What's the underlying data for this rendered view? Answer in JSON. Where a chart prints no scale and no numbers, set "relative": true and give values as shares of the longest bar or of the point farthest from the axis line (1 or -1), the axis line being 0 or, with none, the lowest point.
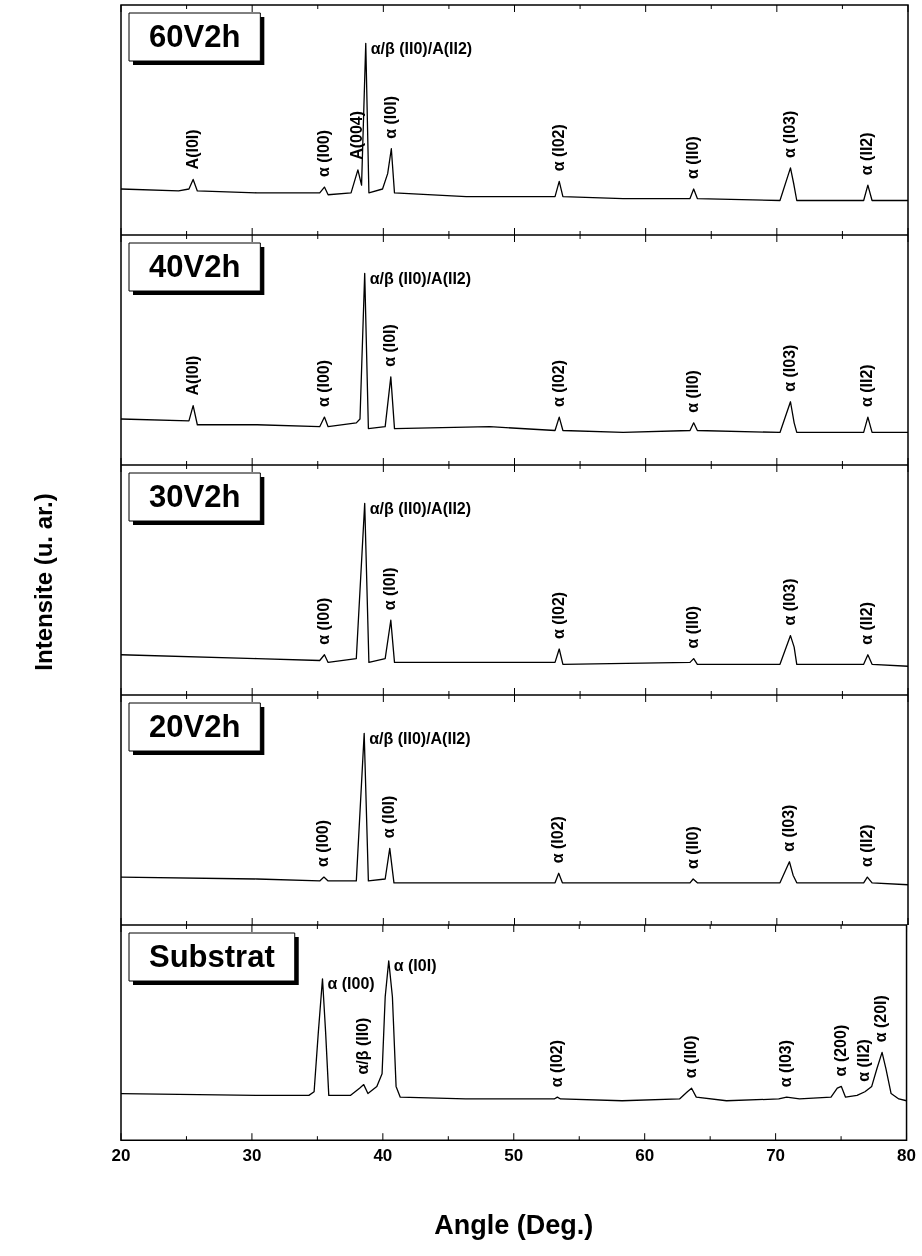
{
  "chart_data": [
    {
      "type": "line",
      "title": "60V2h",
      "relative": true,
      "color": "#000000",
      "xlim": [
        20,
        80
      ],
      "xticks": [
        20,
        {
          "value": 25,
          "label": null
        },
        30,
        {
          "value": 35,
          "label": null
        },
        40,
        {
          "value": 45,
          "label": null
        },
        50,
        {
          "value": 55,
          "label": null
        },
        60,
        {
          "value": 65,
          "label": null
        },
        70,
        {
          "value": 75,
          "label": null
        },
        80
      ],
      "tick_labels": false,
      "x": [
        20,
        24.39,
        25.18,
        25.5,
        25.82,
        30.37,
        35.15,
        35.51,
        35.79,
        37.54,
        38.06,
        38.34,
        38.66,
        38.9,
        39.94,
        40.33,
        40.61,
        40.85,
        46.32,
        53.09,
        53.41,
        53.69,
        58.28,
        63.38,
        63.66,
        63.94,
        70.24,
        71.04,
        71.28,
        71.52,
        76.62,
        76.94,
        77.26,
        80
      ],
      "values": [
        0.24,
        0.23,
        0.24,
        0.29,
        0.23,
        0.22,
        0.22,
        0.25,
        0.21,
        0.22,
        0.34,
        0.26,
        1,
        0.22,
        0.24,
        0.32,
        0.45,
        0.22,
        0.2,
        0.2,
        0.28,
        0.2,
        0.19,
        0.19,
        0.24,
        0.19,
        0.18,
        0.35,
        0.27,
        0.18,
        0.18,
        0.26,
        0.18,
        0.18
      ],
      "annotations": [
        {
          "text": "A(I0I)",
          "x": 25.5,
          "y": 0.29
        },
        {
          "text": "α (I00)",
          "x": 35.51,
          "y": 0.25
        },
        {
          "text": "A(004)",
          "x": 38.06,
          "y": 0.34
        },
        {
          "text": "α/β (II0)/A(II2)",
          "x": 38.66,
          "y": 1
        },
        {
          "text": "α (I0I)",
          "x": 40.61,
          "y": 0.45
        },
        {
          "text": "α (I02)",
          "x": 53.41,
          "y": 0.28
        },
        {
          "text": "α (II0)",
          "x": 63.66,
          "y": 0.24
        },
        {
          "text": "α (I03)",
          "x": 71.04,
          "y": 0.35
        },
        {
          "text": "α (II2)",
          "x": 76.94,
          "y": 0.26
        }
      ]
    },
    {
      "type": "line",
      "title": "40V2h",
      "relative": true,
      "color": "#000000",
      "xlim": [
        20,
        80
      ],
      "xticks": [
        20,
        {
          "value": 25,
          "label": null
        },
        30,
        {
          "value": 35,
          "label": null
        },
        40,
        {
          "value": 45,
          "label": null
        },
        50,
        {
          "value": 55,
          "label": null
        },
        60,
        {
          "value": 65,
          "label": null
        },
        70,
        {
          "value": 75,
          "label": null
        },
        80
      ],
      "tick_labels": false,
      "x": [
        20,
        25.18,
        25.5,
        25.82,
        30.37,
        35.15,
        35.51,
        35.79,
        37.94,
        38.22,
        38.58,
        38.86,
        40.14,
        40.57,
        40.85,
        48.11,
        53.09,
        53.41,
        53.69,
        58.28,
        63.38,
        63.66,
        63.94,
        70.24,
        71.04,
        71.32,
        71.52,
        76.62,
        76.94,
        77.26,
        80
      ],
      "values": [
        0.24,
        0.23,
        0.31,
        0.21,
        0.21,
        0.2,
        0.25,
        0.2,
        0.22,
        0.24,
        1,
        0.19,
        0.2,
        0.46,
        0.19,
        0.2,
        0.18,
        0.25,
        0.18,
        0.17,
        0.18,
        0.22,
        0.18,
        0.17,
        0.33,
        0.22,
        0.17,
        0.17,
        0.25,
        0.17,
        0.17
      ],
      "annotations": [
        {
          "text": "A(I0I)",
          "x": 25.5,
          "y": 0.31
        },
        {
          "text": "α (I00)",
          "x": 35.51,
          "y": 0.25
        },
        {
          "text": "α/β (II0)/A(II2)",
          "x": 38.58,
          "y": 1
        },
        {
          "text": "α (I0I)",
          "x": 40.57,
          "y": 0.46
        },
        {
          "text": "α (I02)",
          "x": 53.41,
          "y": 0.25
        },
        {
          "text": "α (II0)",
          "x": 63.66,
          "y": 0.22
        },
        {
          "text": "α (I03)",
          "x": 71.04,
          "y": 0.33
        },
        {
          "text": "α (II2)",
          "x": 76.94,
          "y": 0.25
        }
      ]
    },
    {
      "type": "line",
      "title": "30V2h",
      "ylabel": "Intensite (u. ar.)",
      "relative": true,
      "color": "#000000",
      "xlim": [
        20,
        80
      ],
      "xticks": [
        20,
        {
          "value": 25,
          "label": null
        },
        30,
        {
          "value": 35,
          "label": null
        },
        40,
        {
          "value": 45,
          "label": null
        },
        50,
        {
          "value": 55,
          "label": null
        },
        60,
        {
          "value": 65,
          "label": null
        },
        70,
        {
          "value": 75,
          "label": null
        },
        80
      ],
      "tick_labels": false,
      "x": [
        20,
        30.37,
        35.15,
        35.51,
        35.79,
        37.94,
        38.58,
        38.9,
        40.14,
        40.57,
        40.85,
        53.09,
        53.41,
        53.69,
        63.38,
        63.66,
        63.94,
        70.24,
        71.04,
        71.32,
        71.52,
        76.62,
        76.94,
        77.26,
        80
      ],
      "values": [
        0.21,
        0.19,
        0.18,
        0.21,
        0.17,
        0.19,
        1,
        0.17,
        0.19,
        0.39,
        0.17,
        0.17,
        0.24,
        0.16,
        0.17,
        0.19,
        0.16,
        0.16,
        0.31,
        0.25,
        0.16,
        0.16,
        0.21,
        0.16,
        0.15
      ],
      "annotations": [
        {
          "text": "α (I00)",
          "x": 35.51,
          "y": 0.21
        },
        {
          "text": "α/β (II0)/A(II2)",
          "x": 38.58,
          "y": 1
        },
        {
          "text": "α (I0I)",
          "x": 40.57,
          "y": 0.39
        },
        {
          "text": "α (I02)",
          "x": 53.41,
          "y": 0.24
        },
        {
          "text": "α (II0)",
          "x": 63.66,
          "y": 0.19
        },
        {
          "text": "α (I03)",
          "x": 71.04,
          "y": 0.31
        },
        {
          "text": "α (II2)",
          "x": 76.94,
          "y": 0.21
        }
      ]
    },
    {
      "type": "line",
      "title": "20V2h",
      "relative": true,
      "color": "#000000",
      "xlim": [
        20,
        80
      ],
      "xticks": [
        20,
        {
          "value": 25,
          "label": null
        },
        30,
        {
          "value": 35,
          "label": null
        },
        40,
        {
          "value": 45,
          "label": null
        },
        50,
        {
          "value": 55,
          "label": null
        },
        60,
        {
          "value": 65,
          "label": null
        },
        70,
        {
          "value": 75,
          "label": null
        },
        80
      ],
      "tick_labels": false,
      "x": [
        20,
        30.37,
        35.15,
        35.47,
        35.79,
        37.94,
        38.54,
        38.86,
        40.14,
        40.49,
        40.81,
        53.09,
        53.37,
        53.65,
        63.38,
        63.62,
        63.94,
        70.24,
        70.96,
        71.24,
        71.52,
        76.62,
        76.9,
        77.26,
        80
      ],
      "values": [
        0.25,
        0.24,
        0.23,
        0.25,
        0.23,
        0.23,
        1,
        0.23,
        0.24,
        0.4,
        0.22,
        0.22,
        0.27,
        0.22,
        0.22,
        0.24,
        0.22,
        0.22,
        0.33,
        0.26,
        0.22,
        0.22,
        0.25,
        0.22,
        0.21
      ],
      "annotations": [
        {
          "text": "α (I00)",
          "x": 35.47,
          "y": 0.25
        },
        {
          "text": "α/β (II0)/A(II2)",
          "x": 38.54,
          "y": 1
        },
        {
          "text": "α (I0I)",
          "x": 40.49,
          "y": 0.4
        },
        {
          "text": "α (I02)",
          "x": 53.37,
          "y": 0.27
        },
        {
          "text": "α (II0)",
          "x": 63.62,
          "y": 0.24
        },
        {
          "text": "α (I03)",
          "x": 70.96,
          "y": 0.33
        },
        {
          "text": "α (II2)",
          "x": 76.9,
          "y": 0.25
        }
      ]
    },
    {
      "type": "line",
      "title": "Substrat",
      "xlabel": "Angle (Deg.)",
      "relative": true,
      "color": "#000000",
      "xlim": [
        20,
        80
      ],
      "xticks": [
        20,
        {
          "value": 25,
          "label": null
        },
        30,
        {
          "value": 35,
          "label": null
        },
        40,
        {
          "value": 45,
          "label": null
        },
        50,
        {
          "value": 55,
          "label": null
        },
        60,
        {
          "value": 65,
          "label": null
        },
        70,
        {
          "value": 75,
          "label": null
        },
        80
      ],
      "tick_labels": "x",
      "x": [
        20,
        30.37,
        34.35,
        34.75,
        35.07,
        35.39,
        35.63,
        35.87,
        37.54,
        38.22,
        38.54,
        38.86,
        39.54,
        39.94,
        40.18,
        40.45,
        40.73,
        41.01,
        41.33,
        46.32,
        53.09,
        53.33,
        53.57,
        58.28,
        62.66,
        63.26,
        63.58,
        63.94,
        66.25,
        70.24,
        70.84,
        71.83,
        74.23,
        74.71,
        75.02,
        75.34,
        76.22,
        76.82,
        77.34,
        77.74,
        78.13,
        78.42,
        78.82,
        79.41,
        80
      ],
      "values": [
        0.26,
        0.25,
        0.25,
        0.27,
        0.6,
        0.9,
        0.6,
        0.25,
        0.25,
        0.29,
        0.31,
        0.26,
        0.3,
        0.37,
        0.8,
        1,
        0.8,
        0.3,
        0.24,
        0.23,
        0.23,
        0.24,
        0.23,
        0.22,
        0.23,
        0.27,
        0.29,
        0.24,
        0.22,
        0.23,
        0.24,
        0.23,
        0.24,
        0.29,
        0.3,
        0.24,
        0.25,
        0.27,
        0.3,
        0.4,
        0.49,
        0.4,
        0.26,
        0.23,
        0.22
      ],
      "annotations": [
        {
          "text": "α (I00)",
          "x": 35.39,
          "y": 0.9
        },
        {
          "text": "α (I0I)",
          "x": 40.45,
          "y": 1
        },
        {
          "text": "α/β (II0)",
          "x": 38.54,
          "y": 0.31
        },
        {
          "text": "α (I02)",
          "x": 53.33,
          "y": 0.24
        },
        {
          "text": "α (II0)",
          "x": 63.58,
          "y": 0.29
        },
        {
          "text": "α (I03)",
          "x": 70.84,
          "y": 0.24
        },
        {
          "text": "α (200)",
          "x": 75.02,
          "y": 0.3
        },
        {
          "text": "α (II2)",
          "x": 76.82,
          "y": 0.27
        },
        {
          "text": "α (20I)",
          "x": 78.13,
          "y": 0.49
        }
      ]
    }
  ]
}
